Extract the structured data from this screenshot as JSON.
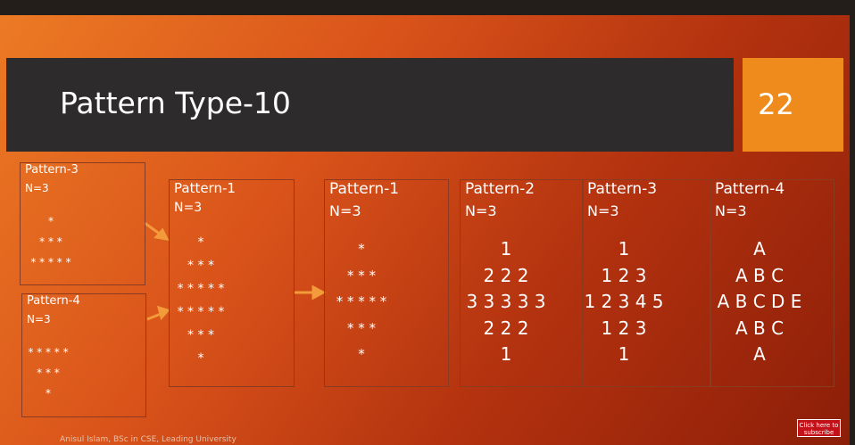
{
  "slide": {
    "title": "Pattern Type-10",
    "number": "22",
    "boxes": [
      {
        "title": "Pattern-3",
        "n": "N=3",
        "lines": [
          "*",
          "* * *",
          "* * * * *"
        ]
      },
      {
        "title": "Pattern-4",
        "n": "N=3",
        "lines": [
          "* * * * *",
          "* * *",
          "*"
        ]
      },
      {
        "title": "Pattern-1",
        "n": "N=3",
        "lines": [
          "*",
          "* * *",
          "* * * * *",
          "* * * * *",
          "* * *",
          "*"
        ]
      },
      {
        "title": "Pattern-1",
        "n": "N=3",
        "lines": [
          "*",
          "* * *",
          "* * * * *",
          "* * *",
          "*"
        ]
      },
      {
        "title": "Pattern-2",
        "n": "N=3",
        "lines": [
          "1",
          "2 2 2",
          "3 3 3 3 3",
          "2 2 2",
          "1"
        ]
      },
      {
        "title": "Pattern-3",
        "n": "N=3",
        "lines": [
          "1",
          "1 2 3",
          "1 2 3 4 5",
          "1 2 3",
          "1"
        ]
      },
      {
        "title": "Pattern-4",
        "n": "N=3",
        "lines": [
          "A",
          "A B C",
          "A B C D E",
          "A B C",
          "A"
        ]
      }
    ],
    "footer": "Anisul Islam, BSc in CSE, Leading University",
    "subscribe": [
      "Click here to",
      "subscribe"
    ]
  }
}
